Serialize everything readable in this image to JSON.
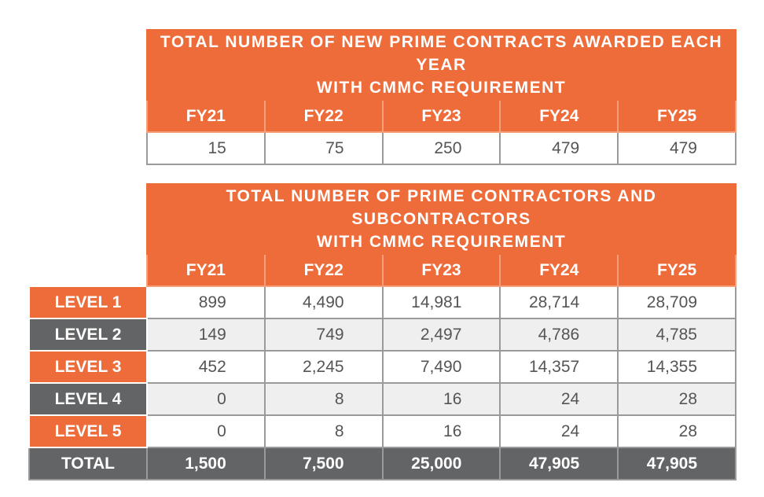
{
  "colors": {
    "orange": "#ee6b3a",
    "gray": "#636466",
    "row_alt": "#efefef"
  },
  "table1": {
    "title_line1": "TOTAL NUMBER OF NEW PRIME CONTRACTS AWARDED EACH YEAR",
    "title_line2": "WITH CMMC REQUIREMENT",
    "headers": [
      "FY21",
      "FY22",
      "FY23",
      "FY24",
      "FY25"
    ],
    "values": [
      "15",
      "75",
      "250",
      "479",
      "479"
    ]
  },
  "table2": {
    "title_line1": "TOTAL NUMBER OF PRIME CONTRACTORS AND SUBCONTRACTORS",
    "title_line2": "WITH CMMC REQUIREMENT",
    "headers": [
      "FY21",
      "FY22",
      "FY23",
      "FY24",
      "FY25"
    ],
    "rows": [
      {
        "label": "LEVEL 1",
        "values": [
          "899",
          "4,490",
          "14,981",
          "28,714",
          "28,709"
        ]
      },
      {
        "label": "LEVEL 2",
        "values": [
          "149",
          "749",
          "2,497",
          "4,786",
          "4,785"
        ]
      },
      {
        "label": "LEVEL 3",
        "values": [
          "452",
          "2,245",
          "7,490",
          "14,357",
          "14,355"
        ]
      },
      {
        "label": "LEVEL 4",
        "values": [
          "0",
          "8",
          "16",
          "24",
          "28"
        ]
      },
      {
        "label": "LEVEL 5",
        "values": [
          "0",
          "8",
          "16",
          "24",
          "28"
        ]
      }
    ],
    "total": {
      "label": "TOTAL",
      "values": [
        "1,500",
        "7,500",
        "25,000",
        "47,905",
        "47,905"
      ]
    }
  }
}
